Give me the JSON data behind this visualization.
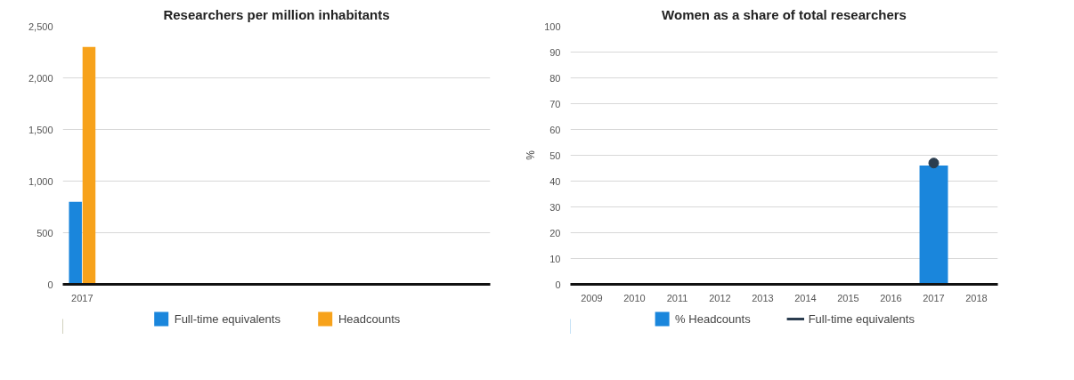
{
  "chart_data": [
    {
      "type": "bar",
      "title": "Researchers per million inhabitants",
      "categories": [
        "2017",
        null,
        null,
        null,
        null,
        null,
        null,
        null,
        null,
        null,
        null
      ],
      "series": [
        {
          "name": "Full-time equivalents",
          "color": "#1a86dc",
          "values": [
            800,
            null,
            null,
            null,
            null,
            null,
            null,
            null,
            null,
            null,
            null
          ]
        },
        {
          "name": "Headcounts",
          "color": "#f7a21b",
          "values": [
            2300,
            null,
            null,
            null,
            null,
            null,
            null,
            null,
            null,
            null,
            null
          ]
        }
      ],
      "ylim": [
        0,
        2500
      ],
      "yticks": [
        0,
        {
          "value": 500,
          "label": "500"
        },
        {
          "value": 1000,
          "label": "1,000"
        },
        {
          "value": 1500,
          "label": "1,500"
        },
        {
          "value": 2000,
          "label": "2,000"
        },
        {
          "value": 2500,
          "label": "2,500"
        }
      ],
      "grid": "y",
      "legend": "bottom"
    },
    {
      "type": "bar",
      "title": "Women as a share of total researchers",
      "ylabel": "%",
      "categories": [
        "2009",
        "2010",
        "2011",
        "2012",
        "2013",
        "2014",
        "2015",
        "2016",
        "2017",
        "2018"
      ],
      "series": [
        {
          "name": "% Headcounts",
          "color": "#1a86dc",
          "values": [
            null,
            null,
            null,
            null,
            null,
            null,
            null,
            null,
            46,
            null
          ]
        },
        {
          "name": "Full-time equivalents",
          "type": "line",
          "color": "#2b3d4f",
          "marker": "circle",
          "line_style": "solid",
          "values": [
            null,
            null,
            null,
            null,
            null,
            null,
            null,
            null,
            47,
            null
          ]
        }
      ],
      "ylim": [
        0,
        100
      ],
      "yticks": [
        0,
        10,
        20,
        30,
        40,
        50,
        60,
        70,
        80,
        90,
        100
      ],
      "grid": "y",
      "legend": "bottom"
    }
  ]
}
